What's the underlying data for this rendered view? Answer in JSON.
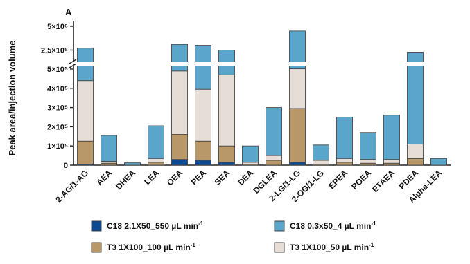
{
  "chart_data": {
    "type": "bar",
    "stacked": true,
    "panel_label": "A",
    "ylabel": "Peak area/injection volume",
    "xlabel": "",
    "axis_break": true,
    "y_ticks_lower": [
      "0",
      "1×10⁵",
      "2×10⁵",
      "3×10⁵",
      "4×10⁵",
      "5×10⁵"
    ],
    "y_ticks_upper": [
      "2.5×10⁶",
      "5×10⁶"
    ],
    "ylim_lower": [
      0,
      500000
    ],
    "ylim_upper": [
      500000,
      5000000
    ],
    "categories": [
      "2-AG/1-AG",
      "AEA",
      "DHEA",
      "LEA",
      "OEA",
      "PEA",
      "SEA",
      "DEA",
      "DGLEA",
      "2-LG/1-LG",
      "2-OG/1-LG",
      "EPEA",
      "POEA",
      "ETAEA",
      "PDEA",
      "Alpha-LEA"
    ],
    "series": [
      {
        "name": "C18 2.1X50_550 µL min",
        "name_sup": "-1",
        "color": "#0d4a94",
        "values": [
          5000,
          0,
          0,
          0,
          30000,
          25000,
          15000,
          0,
          0,
          15000,
          0,
          0,
          0,
          0,
          0,
          0
        ]
      },
      {
        "name": "T3 1X100_100 µL min",
        "name_sup": "-1",
        "color": "#b89868",
        "values": [
          120000,
          10000,
          0,
          15000,
          130000,
          100000,
          85000,
          5000,
          25000,
          280000,
          5000,
          15000,
          10000,
          10000,
          35000,
          0
        ]
      },
      {
        "name": "T3 1X100_50 µL min",
        "name_sup": "-1",
        "color": "#e5ddd6",
        "values": [
          315000,
          10000,
          0,
          20000,
          330000,
          270000,
          370000,
          10000,
          25000,
          235000,
          20000,
          20000,
          20000,
          20000,
          75000,
          0
        ]
      },
      {
        "name": "C18 0.3x50_4 µL min",
        "name_sup": "-1",
        "color": "#5aa6cb",
        "values": [
          2260000,
          135000,
          12000,
          170000,
          2600000,
          2605000,
          2030000,
          85000,
          250000,
          3970000,
          80000,
          215000,
          140000,
          230000,
          2170000,
          35000
        ]
      }
    ],
    "legend_position": "bottom",
    "grid": false
  }
}
